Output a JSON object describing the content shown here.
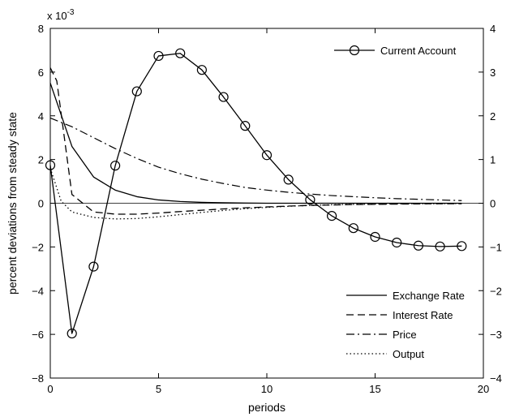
{
  "chart_data": {
    "type": "line",
    "xlabel": "periods",
    "ylabel": "percent deviations from steady state",
    "y_exponent_label": "x 10",
    "y_exponent_power": "-3",
    "xlim": [
      0,
      20
    ],
    "ylim_left": [
      -8,
      8
    ],
    "ylim_right": [
      -4,
      4
    ],
    "x_ticks": [
      0,
      5,
      10,
      15,
      20
    ],
    "y_ticks_left": [
      -8,
      -6,
      -4,
      -2,
      0,
      2,
      4,
      6,
      8
    ],
    "y_ticks_right": [
      -4,
      -3,
      -2,
      -1,
      0,
      1,
      2,
      3,
      4
    ],
    "grid": false,
    "zero_line": true,
    "legends": [
      {
        "placement": "top-right",
        "entries": [
          "Current Account"
        ]
      },
      {
        "placement": "bottom-right",
        "entries": [
          "Exchange Rate",
          "Interest Rate",
          "Price",
          "Output"
        ]
      }
    ],
    "series": [
      {
        "name": "Current Account",
        "axis": "right",
        "style": "solid-circle",
        "x": [
          0,
          1,
          2,
          3,
          4,
          5,
          6,
          7,
          8,
          9,
          10,
          11,
          12,
          13,
          14,
          15,
          16,
          17,
          18,
          19
        ],
        "values": [
          0.87,
          -2.98,
          -1.45,
          0.86,
          2.56,
          3.37,
          3.43,
          3.05,
          2.43,
          1.77,
          1.1,
          0.54,
          0.08,
          -0.29,
          -0.57,
          -0.77,
          -0.9,
          -0.97,
          -0.99,
          -0.98
        ]
      },
      {
        "name": "Exchange Rate",
        "axis": "left",
        "style": "solid",
        "x": [
          0,
          1,
          2,
          3,
          4,
          5,
          6,
          7,
          8,
          9,
          10,
          11,
          12,
          13,
          14,
          15,
          16,
          17,
          18,
          19
        ],
        "values": [
          5.5,
          2.6,
          1.2,
          0.6,
          0.3,
          0.15,
          0.08,
          0.04,
          0.02,
          0.01,
          0.0,
          0.0,
          0.0,
          0.0,
          0.0,
          0.0,
          0.0,
          0.0,
          0.0,
          0.0
        ]
      },
      {
        "name": "Interest Rate",
        "axis": "left",
        "style": "dashed",
        "x": [
          0,
          0.3,
          1,
          2,
          3,
          4,
          5,
          6,
          7,
          8,
          9,
          10,
          11,
          12,
          13,
          14,
          15,
          16,
          17,
          18,
          19
        ],
        "values": [
          6.2,
          5.6,
          0.4,
          -0.4,
          -0.5,
          -0.5,
          -0.45,
          -0.38,
          -0.32,
          -0.26,
          -0.21,
          -0.17,
          -0.13,
          -0.1,
          -0.08,
          -0.06,
          -0.05,
          -0.04,
          -0.03,
          -0.02,
          -0.02
        ]
      },
      {
        "name": "Price",
        "axis": "left",
        "style": "dash-dot",
        "x": [
          0,
          1,
          2,
          3,
          4,
          5,
          6,
          7,
          8,
          9,
          10,
          11,
          12,
          13,
          14,
          15,
          16,
          17,
          18,
          19
        ],
        "values": [
          3.9,
          3.5,
          3.0,
          2.5,
          2.05,
          1.65,
          1.35,
          1.1,
          0.9,
          0.72,
          0.6,
          0.5,
          0.42,
          0.35,
          0.3,
          0.25,
          0.21,
          0.18,
          0.15,
          0.12
        ]
      },
      {
        "name": "Output",
        "axis": "left",
        "style": "dotted",
        "x": [
          0,
          0.5,
          1,
          2,
          3,
          4,
          5,
          6,
          7,
          8,
          9,
          10,
          11,
          12,
          13,
          14,
          15,
          16,
          17,
          18,
          19
        ],
        "values": [
          1.6,
          0.1,
          -0.4,
          -0.65,
          -0.72,
          -0.7,
          -0.62,
          -0.52,
          -0.42,
          -0.33,
          -0.25,
          -0.19,
          -0.14,
          -0.1,
          -0.07,
          -0.05,
          -0.04,
          -0.03,
          -0.02,
          -0.02,
          -0.01
        ]
      }
    ]
  }
}
